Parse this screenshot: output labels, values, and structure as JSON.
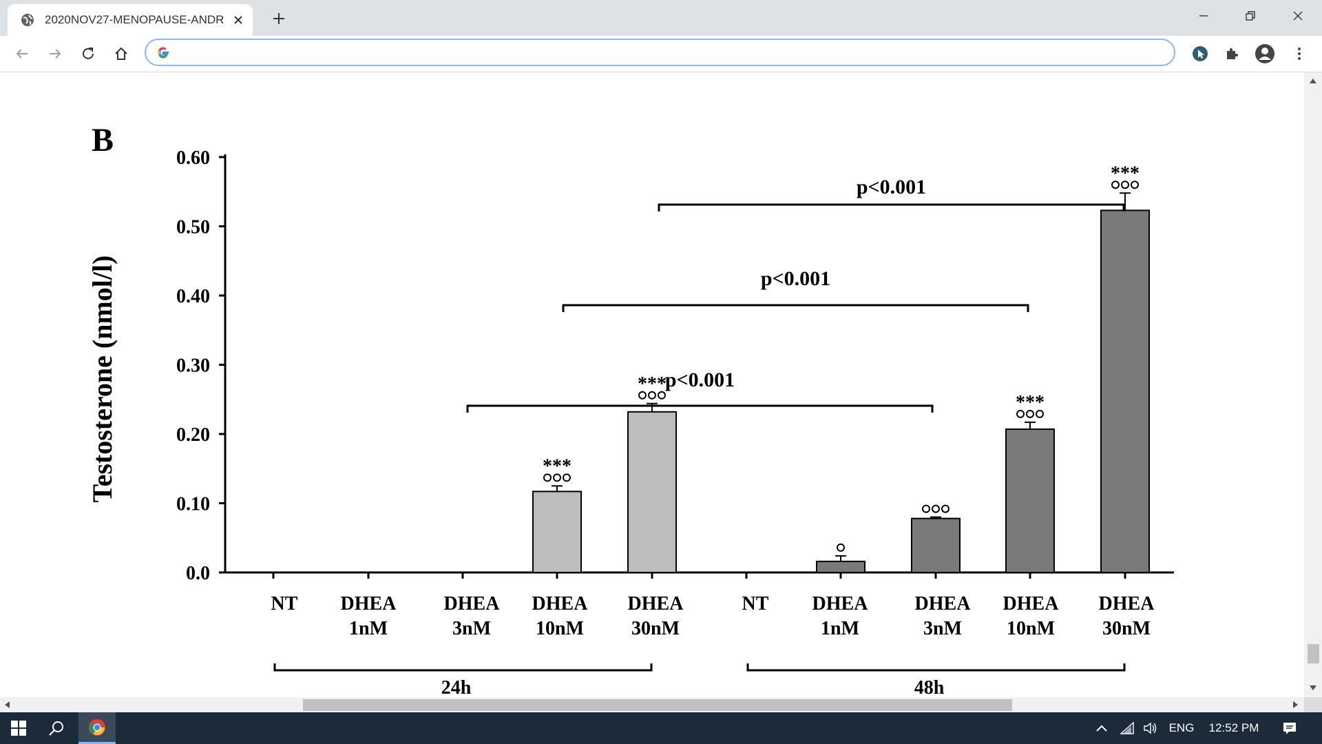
{
  "browser": {
    "tab_title": "2020NOV27-MENOPAUSE-ANDR",
    "address_value": "",
    "address_placeholder": ""
  },
  "figure": {
    "panel_label": "B",
    "ylabel": "Testosterone (nmol/l)",
    "group_labels": [
      "24h",
      "48h"
    ],
    "comparisons": [
      {
        "label": "p<0.001",
        "from": "24h DHEA 3nM",
        "to": "48h DHEA 3nM"
      },
      {
        "label": "p<0.001",
        "from": "24h DHEA 10nM",
        "to": "48h DHEA 10nM"
      },
      {
        "label": "p<0.001",
        "from": "24h DHEA 30nM",
        "to": "48h DHEA 30nM"
      }
    ],
    "annotations": [
      "***°°°",
      "***°°°",
      "°",
      "°°°",
      "***°°°",
      "***°°°"
    ]
  },
  "chart_data": {
    "type": "bar",
    "title": "",
    "ylabel": "Testosterone (nmol/l)",
    "xlabel": "",
    "ylim": [
      0,
      0.6
    ],
    "yticks": [
      "0.0",
      "0.10",
      "0.20",
      "0.30",
      "0.40",
      "0.50",
      "0.60"
    ],
    "categories": [
      {
        "line1": "NT",
        "line2": "",
        "group": "24h"
      },
      {
        "line1": "DHEA",
        "line2": "1nM",
        "group": "24h"
      },
      {
        "line1": "DHEA",
        "line2": "3nM",
        "group": "24h"
      },
      {
        "line1": "DHEA",
        "line2": "10nM",
        "group": "24h"
      },
      {
        "line1": "DHEA",
        "line2": "30nM",
        "group": "24h"
      },
      {
        "line1": "NT",
        "line2": "",
        "group": "48h"
      },
      {
        "line1": "DHEA",
        "line2": "1nM",
        "group": "48h"
      },
      {
        "line1": "DHEA",
        "line2": "3nM",
        "group": "48h"
      },
      {
        "line1": "DHEA",
        "line2": "10nM",
        "group": "48h"
      },
      {
        "line1": "DHEA",
        "line2": "30nM",
        "group": "48h"
      }
    ],
    "values": [
      0,
      0,
      0,
      0.117,
      0.232,
      0,
      0.016,
      0.078,
      0.207,
      0.523
    ],
    "errors": [
      0,
      0,
      0,
      0.008,
      0.012,
      0,
      0.008,
      0.002,
      0.01,
      0.025
    ],
    "stars": [
      "",
      "",
      "",
      "***",
      "***",
      "",
      "",
      "",
      "***",
      "***"
    ],
    "circles": [
      "",
      "",
      "",
      "ooo",
      "ooo",
      "",
      "o",
      "ooo",
      "ooo",
      "ooo"
    ],
    "series_colors": {
      "24h": "#bdbdbd",
      "48h": "#7a7a7a"
    },
    "grid": false
  },
  "taskbar": {
    "language": "ENG",
    "time": "12:52 PM"
  }
}
